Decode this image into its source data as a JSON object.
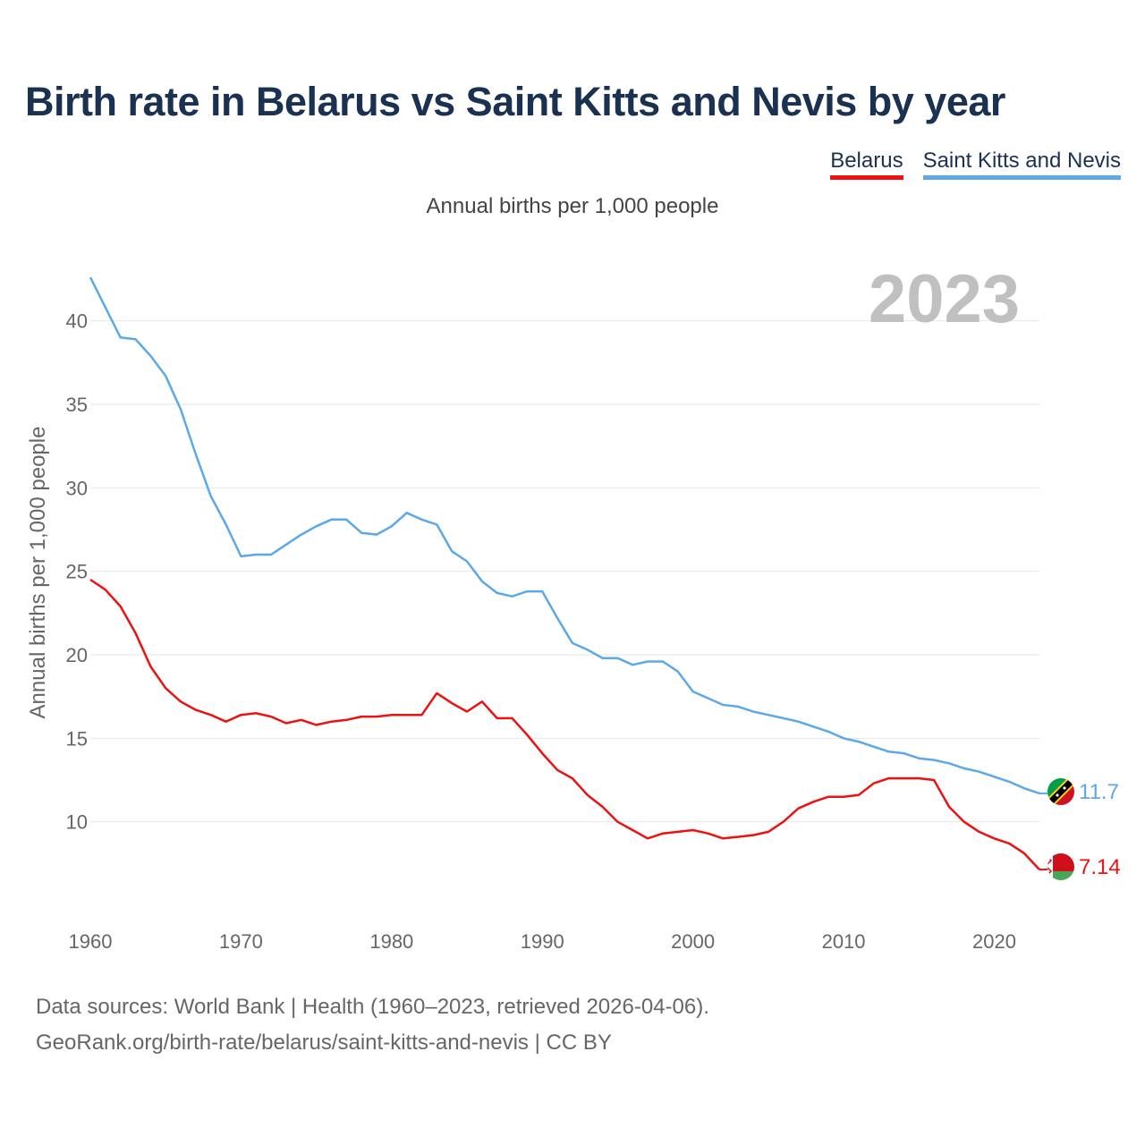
{
  "title": "Birth rate in Belarus vs Saint Kitts and Nevis by year",
  "subtitle": "Annual births per 1,000 people",
  "footer": {
    "sources": "Data sources: World Bank | Health (1960–2023, retrieved 2026-04-06).",
    "credit": "GeoRank.org/birth-rate/belarus/saint-kitts-and-nevis | CC BY"
  },
  "colors": {
    "grid": "#e6e6e6",
    "year_watermark": "#c0c0c0"
  },
  "chart_data": {
    "type": "line",
    "title": "Birth rate in Belarus vs Saint Kitts and Nevis by year",
    "subtitle": "Annual births per 1,000 people",
    "year_label": "2023",
    "xlabel": "",
    "ylabel": "Annual births per 1,000 people",
    "xlim": [
      1960,
      2023
    ],
    "ylim": [
      5,
      42.5
    ],
    "xticks": [
      1960,
      1970,
      1980,
      1990,
      2000,
      2010,
      2020
    ],
    "yticks": [
      10,
      15,
      20,
      25,
      30,
      35,
      40
    ],
    "grid": true,
    "legend": "top-right",
    "x": [
      1960,
      1961,
      1962,
      1963,
      1964,
      1965,
      1966,
      1967,
      1968,
      1969,
      1970,
      1971,
      1972,
      1973,
      1974,
      1975,
      1976,
      1977,
      1978,
      1979,
      1980,
      1981,
      1982,
      1983,
      1984,
      1985,
      1986,
      1987,
      1988,
      1989,
      1990,
      1991,
      1992,
      1993,
      1994,
      1995,
      1996,
      1997,
      1998,
      1999,
      2000,
      2001,
      2002,
      2003,
      2004,
      2005,
      2006,
      2007,
      2008,
      2009,
      2010,
      2011,
      2012,
      2013,
      2014,
      2015,
      2016,
      2017,
      2018,
      2019,
      2020,
      2021,
      2022,
      2023
    ],
    "series": [
      {
        "name": "Belarus",
        "color": "#ee1111",
        "end_label": "7.14",
        "flag": "belarus-flag-icon",
        "values": [
          24.5,
          23.9,
          22.9,
          21.3,
          19.3,
          18.0,
          17.2,
          16.7,
          16.4,
          16.0,
          16.4,
          16.5,
          16.3,
          15.9,
          16.1,
          15.8,
          16.0,
          16.1,
          16.3,
          16.3,
          16.4,
          16.4,
          16.4,
          17.7,
          17.1,
          16.6,
          17.2,
          16.2,
          16.2,
          15.2,
          14.1,
          13.1,
          12.6,
          11.6,
          10.9,
          10.0,
          9.5,
          9.0,
          9.3,
          9.4,
          9.5,
          9.3,
          9.0,
          9.1,
          9.2,
          9.4,
          10.0,
          10.8,
          11.2,
          11.5,
          11.5,
          11.6,
          12.3,
          12.6,
          12.6,
          12.6,
          12.5,
          10.9,
          10.0,
          9.4,
          9.0,
          8.7,
          8.1,
          7.14
        ]
      },
      {
        "name": "Saint Kitts and Nevis",
        "color": "#5ca8e8",
        "end_label": "11.7",
        "flag": "saint-kitts-and-nevis-flag-icon",
        "values": [
          42.6,
          40.8,
          39.0,
          38.9,
          37.9,
          36.7,
          34.7,
          32.0,
          29.5,
          27.8,
          25.9,
          26.0,
          26.0,
          26.6,
          27.2,
          27.7,
          28.1,
          28.1,
          27.3,
          27.2,
          27.7,
          28.5,
          28.1,
          27.8,
          26.2,
          25.6,
          24.4,
          23.7,
          23.5,
          23.8,
          23.8,
          22.2,
          20.7,
          20.3,
          19.8,
          19.8,
          19.4,
          19.6,
          19.6,
          19.0,
          17.8,
          17.4,
          17.0,
          16.9,
          16.6,
          16.4,
          16.2,
          16.0,
          15.7,
          15.4,
          15.0,
          14.8,
          14.5,
          14.2,
          14.1,
          13.8,
          13.7,
          13.5,
          13.2,
          13.0,
          12.7,
          12.4,
          12.0,
          11.7
        ]
      }
    ]
  }
}
